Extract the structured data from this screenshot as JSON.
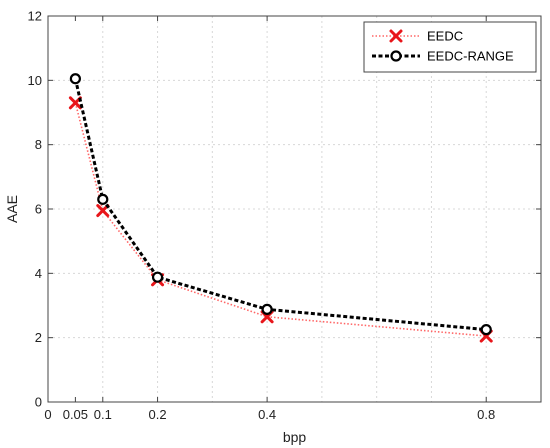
{
  "chart_data": {
    "type": "line",
    "title": "",
    "xlabel": "bpp",
    "ylabel": "AAE",
    "xlim": [
      0,
      0.9
    ],
    "ylim": [
      0,
      12
    ],
    "xticks": [
      0,
      0.05,
      0.1,
      0.2,
      0.4,
      0.8
    ],
    "xtick_labels": [
      "0",
      "0.05",
      "0.1",
      "0.2",
      "0.4",
      "0.8"
    ],
    "xgrid": [
      0,
      0.1,
      0.2,
      0.3,
      0.4,
      0.5,
      0.6,
      0.7,
      0.8,
      0.9
    ],
    "yticks": [
      0,
      2,
      4,
      6,
      8,
      10,
      12
    ],
    "ytick_labels": [
      "0",
      "2",
      "4",
      "6",
      "8",
      "10",
      "12"
    ],
    "grid": true,
    "legend_position": "top-right",
    "x": [
      0.05,
      0.1,
      0.2,
      0.4,
      0.8
    ],
    "series": [
      {
        "name": "EEDC",
        "values": [
          9.3,
          5.95,
          3.8,
          2.65,
          2.05
        ],
        "color": "#ff6666",
        "marker": "x",
        "marker_color": "#e8161b",
        "line_style": "dotted"
      },
      {
        "name": "EEDC-RANGE",
        "values": [
          10.05,
          6.3,
          3.88,
          2.88,
          2.25
        ],
        "color": "#000000",
        "marker": "circle",
        "marker_color": "#000000",
        "line_style": "dashed"
      }
    ]
  }
}
